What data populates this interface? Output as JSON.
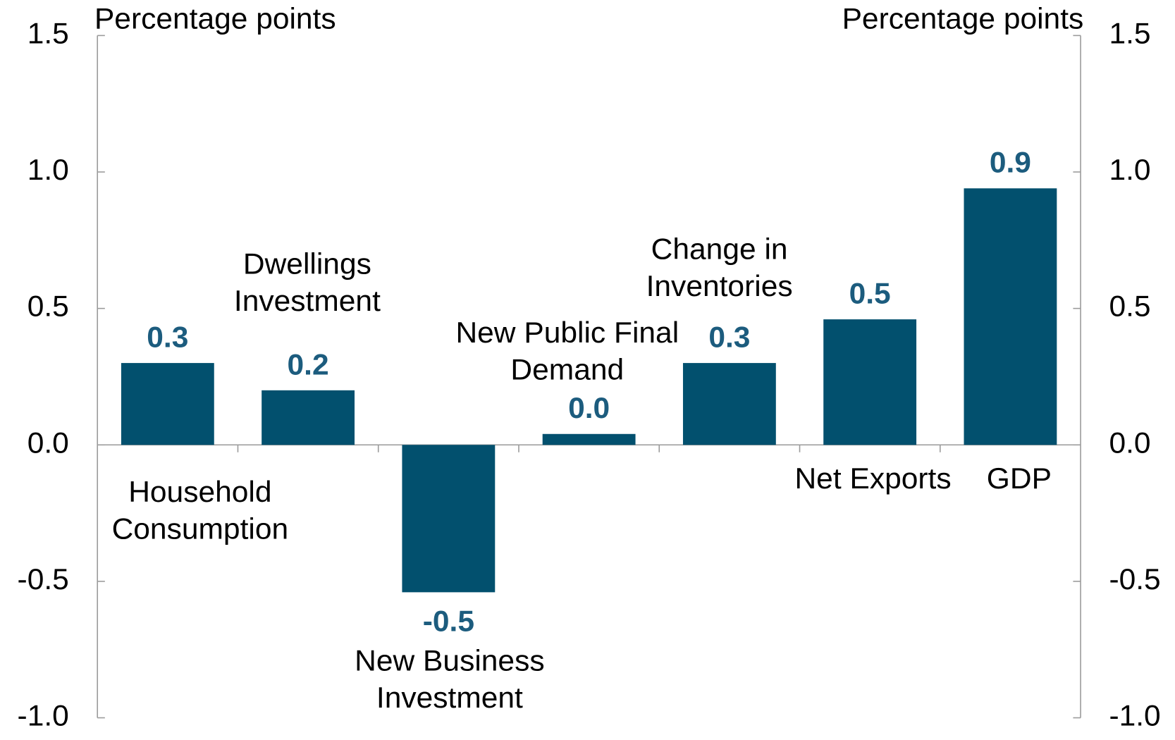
{
  "chart_data": {
    "type": "bar",
    "y_label": "Percentage points",
    "y2_label": "Percentage points",
    "categories": [
      "Household Consumption",
      "Dwellings Investment",
      "New Business Investment",
      "New Public Final Demand",
      "Change in Inventories",
      "Net Exports",
      "GDP"
    ],
    "values": [
      0.3,
      0.2,
      -0.54,
      0.04,
      0.3,
      0.46,
      0.94
    ],
    "value_labels": [
      "0.3",
      "0.2",
      "-0.5",
      "0.0",
      "0.3",
      "0.5",
      "0.9"
    ],
    "color": "#02506e",
    "ylim": [
      -1,
      1.5
    ],
    "yticks": [
      {
        "value": -1,
        "label": "-1.0"
      },
      -0.5,
      {
        "value": 0,
        "label": "0.0"
      },
      0.5,
      {
        "value": 1,
        "label": "1.0"
      },
      1.5
    ],
    "y2lim": [
      -1,
      1.5
    ],
    "y2ticks": [
      {
        "value": -1,
        "label": "-1.0"
      },
      -0.5,
      {
        "value": 0,
        "label": "0.0"
      },
      0.5,
      {
        "value": 1,
        "label": "1.0"
      },
      1.5
    ],
    "grid": false
  }
}
